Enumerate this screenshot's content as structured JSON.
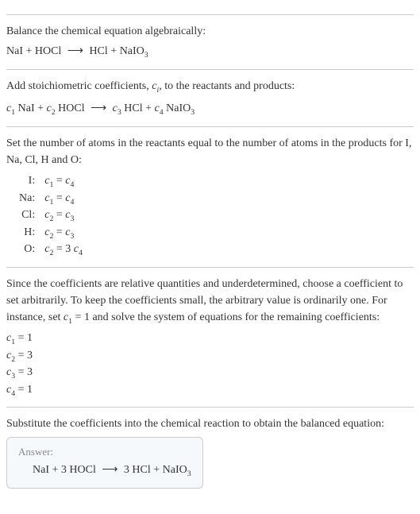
{
  "section1": {
    "intro": "Balance the chemical equation algebraically:",
    "eq": {
      "lhs1": "NaI",
      "plus1": " + ",
      "lhs2": "HOCl",
      "arrow": "⟶",
      "rhs1": "HCl",
      "plus2": " + ",
      "rhs2_base": "NaIO",
      "rhs2_sub": "3"
    }
  },
  "section2": {
    "intro_a": "Add stoichiometric coefficients, ",
    "intro_ci": "c",
    "intro_ci_sub": "i",
    "intro_b": ", to the reactants and products:",
    "eq": {
      "c1": "c",
      "c1s": "1",
      "sp1": " NaI + ",
      "c2": "c",
      "c2s": "2",
      "sp2": " HOCl ",
      "arrow": "⟶",
      "c3": "c",
      "c3s": "3",
      "sp3": " HCl + ",
      "c4": "c",
      "c4s": "4",
      "sp4": " NaIO",
      "sp4sub": "3"
    }
  },
  "section3": {
    "intro": "Set the number of atoms in the reactants equal to the number of atoms in the products for I, Na, Cl, H and O:",
    "rows": {
      "r0e": "I:",
      "r0c1": "c",
      "r0c1s": "1",
      "r0eqs": " = ",
      "r0c2": "c",
      "r0c2s": "4",
      "r1e": "Na:",
      "r1c1": "c",
      "r1c1s": "1",
      "r1eqs": " = ",
      "r1c2": "c",
      "r1c2s": "4",
      "r2e": "Cl:",
      "r2c1": "c",
      "r2c1s": "2",
      "r2eqs": " = ",
      "r2c2": "c",
      "r2c2s": "3",
      "r3e": "H:",
      "r3c1": "c",
      "r3c1s": "2",
      "r3eqs": " = ",
      "r3c2": "c",
      "r3c2s": "3",
      "r4e": "O:",
      "r4c1": "c",
      "r4c1s": "2",
      "r4eqs": " = 3 ",
      "r4c2": "c",
      "r4c2s": "4"
    }
  },
  "section4": {
    "intro_a": "Since the coefficients are relative quantities and underdetermined, choose a coefficient to set arbitrarily. To keep the coefficients small, the arbitrary value is ordinarily one. For instance, set ",
    "intro_c": "c",
    "intro_cs": "1",
    "intro_b": " = 1 and solve the system of equations for the remaining coefficients:",
    "coef": {
      "l0c": "c",
      "l0s": "1",
      "l0v": " = 1",
      "l1c": "c",
      "l1s": "2",
      "l1v": " = 3",
      "l2c": "c",
      "l2s": "3",
      "l2v": " = 3",
      "l3c": "c",
      "l3s": "4",
      "l3v": " = 1"
    }
  },
  "section5": {
    "intro": "Substitute the coefficients into the chemical reaction to obtain the balanced equation:",
    "answer_label": "Answer:",
    "eq": {
      "a": "NaI + 3 HOCl ",
      "arrow": "⟶",
      "b": " 3 HCl + NaIO",
      "bsub": "3"
    }
  }
}
